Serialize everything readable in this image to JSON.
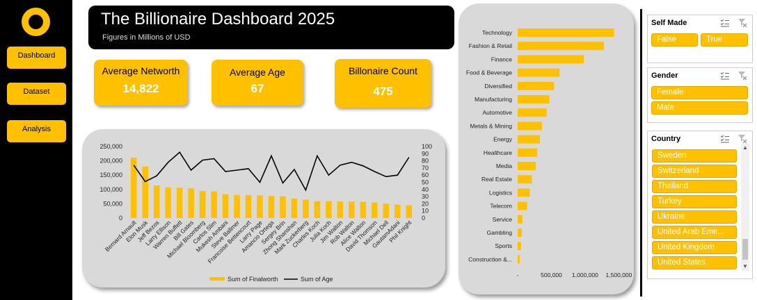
{
  "sidebar": {
    "items": [
      {
        "label": "Dashboard"
      },
      {
        "label": "Dataset"
      },
      {
        "label": "Analysis"
      }
    ]
  },
  "header": {
    "title": "The Billionaire Dashboard 2025",
    "subtitle": "Figures in Millions of USD"
  },
  "kpis": {
    "networth_label": "Average Networth",
    "networth_value": "14,822",
    "age_label": "Average Age",
    "age_value": "67",
    "count_label": "Billonaire Count",
    "count_value": "475"
  },
  "colors": {
    "accent": "#FFC000",
    "dark": "#000000",
    "panel": "#D9D9D9"
  },
  "chart_data": [
    {
      "type": "bar",
      "combo_line_series": "Sum of Age",
      "categories": [
        "Bernard Arnault",
        "Elon Musk",
        "Jeff Bezos",
        "Larry Ellison",
        "Warren Buffett",
        "Bill Gates",
        "Michael Bloomberg",
        "Carlos Slim",
        "Mukesh Ambani",
        "Steve Ballmer",
        "Francoise Bettencourt",
        "Larry Page",
        "Amancio Ortega",
        "Sergey Brin",
        "Zhong Shanshan",
        "Mark Zuckerberg",
        "Charles Koch",
        "Julia Koch",
        "Jim Walton",
        "Rob Walton",
        "Alice Walton",
        "David Thomson",
        "Michael Dell",
        "GautamAdani",
        "Phil Knight"
      ],
      "series": [
        {
          "name": "Sum of Finalworth",
          "axis": "left",
          "values": [
            211000,
            180000,
            114000,
            107000,
            106000,
            104000,
            94500,
            93000,
            83400,
            80700,
            80500,
            79200,
            77300,
            76000,
            68000,
            64400,
            59000,
            59000,
            58000,
            57600,
            56700,
            54400,
            50100,
            47200,
            45100
          ]
        },
        {
          "name": "Sum of Age",
          "axis": "right",
          "values": [
            74,
            51,
            59,
            78,
            92,
            67,
            81,
            83,
            65,
            67,
            69,
            50,
            87,
            49,
            68,
            39,
            87,
            60,
            74,
            78,
            73,
            65,
            58,
            60,
            85
          ]
        }
      ],
      "ylim": [
        0,
        250000
      ],
      "yticks": [
        "0",
        "50,000",
        "100,000",
        "150,000",
        "200,000",
        "250,000"
      ],
      "y2lim": [
        0,
        100
      ],
      "y2ticks": [
        "0",
        "10",
        "20",
        "30",
        "40",
        "50",
        "60",
        "70",
        "80",
        "90",
        "100"
      ],
      "legend": "bottom",
      "grid": false
    },
    {
      "type": "bar",
      "orientation": "horizontal",
      "categories": [
        "Technology",
        "Fashion & Retail",
        "Finance",
        "Food & Beverage",
        "Diversified",
        "Manufacturing",
        "Automotive",
        "Metals & Mining",
        "Energy",
        "Healthcare",
        "Media",
        "Real Estate",
        "Logistics",
        "Telecom",
        "Service",
        "Gambling",
        "Sports",
        "Construction &..."
      ],
      "values": [
        1430000,
        1280000,
        980000,
        620000,
        540000,
        470000,
        430000,
        360000,
        330000,
        290000,
        270000,
        210000,
        180000,
        140000,
        70000,
        60000,
        50000,
        30000
      ],
      "xlim": [
        0,
        1650000
      ],
      "xticks": [
        "-",
        "500,000",
        "1,000,000",
        "1,500,000"
      ],
      "grid": false
    }
  ],
  "slicers": {
    "self_made": {
      "title": "Self Made",
      "items": [
        "False",
        "True"
      ]
    },
    "gender": {
      "title": "Gender",
      "items": [
        "Female",
        "Male"
      ]
    },
    "country": {
      "title": "Country",
      "items": [
        "Sweden",
        "Switzerland",
        "Thailand",
        "Turkey",
        "Ukraine",
        "United Arab Emir...",
        "United Kingdom",
        "United States"
      ]
    }
  }
}
